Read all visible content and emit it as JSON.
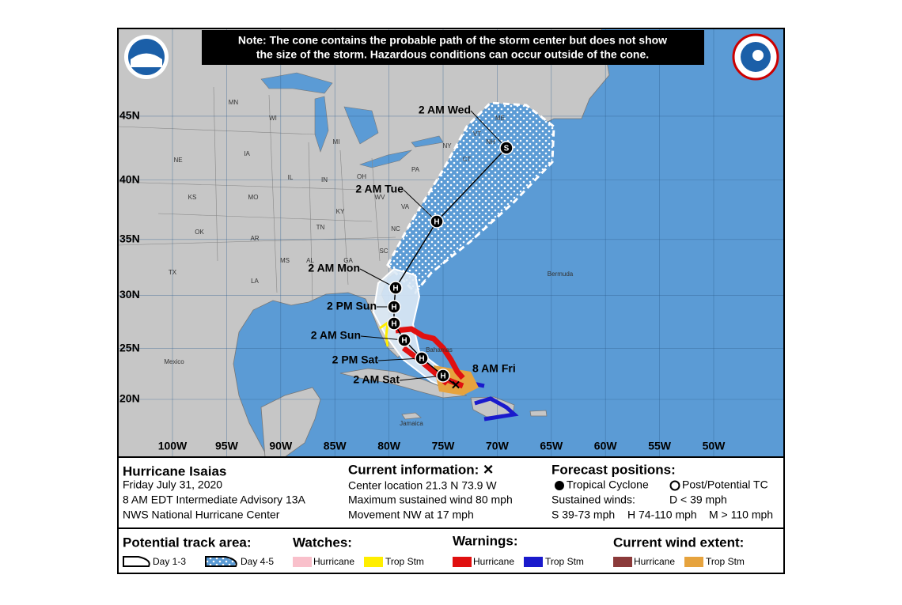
{
  "note": [
    "Note: The cone contains the probable path of the storm center but does not show",
    "the size of the storm. Hazardous conditions can occur outside of the cone."
  ],
  "map": {
    "latitudes": [
      {
        "value": 45,
        "label": "45N"
      },
      {
        "value": 40,
        "label": "40N"
      },
      {
        "value": 35,
        "label": "35N"
      },
      {
        "value": 30,
        "label": "30N"
      },
      {
        "value": 25,
        "label": "25N"
      },
      {
        "value": 20,
        "label": "20N"
      }
    ],
    "longitudes": [
      {
        "value": 100,
        "label": "100W"
      },
      {
        "value": 95,
        "label": "95W"
      },
      {
        "value": 90,
        "label": "90W"
      },
      {
        "value": 85,
        "label": "85W"
      },
      {
        "value": 80,
        "label": "80W"
      },
      {
        "value": 75,
        "label": "75W"
      },
      {
        "value": 70,
        "label": "70W"
      },
      {
        "value": 65,
        "label": "65W"
      },
      {
        "value": 60,
        "label": "60W"
      },
      {
        "value": 55,
        "label": "55W"
      },
      {
        "value": 50,
        "label": "50W"
      }
    ],
    "regions": [
      "MN",
      "WI",
      "MI",
      "IA",
      "NE",
      "KS",
      "MO",
      "IL",
      "IN",
      "OH",
      "KY",
      "TN",
      "OK",
      "AR",
      "TX",
      "LA",
      "MS",
      "AL",
      "GA",
      "SC",
      "NC",
      "VA",
      "WV",
      "PA",
      "NY",
      "VT",
      "NH",
      "ME",
      "CT",
      "Mexico",
      "Bermuda",
      "Bahamas",
      "Jamaica"
    ],
    "forecast_points": [
      {
        "time": "2 AM Sat",
        "marker": "H"
      },
      {
        "time": "2 PM Sat",
        "marker": "H"
      },
      {
        "time": "2 AM Sun",
        "marker": "H"
      },
      {
        "time": null,
        "marker": "H"
      },
      {
        "time": "2 PM Sun",
        "marker": "H"
      },
      {
        "time": "2 AM Mon",
        "marker": "H"
      },
      {
        "time": "2 AM Tue",
        "marker": "H"
      },
      {
        "time": "2 AM Wed",
        "marker": "S"
      }
    ],
    "current": {
      "time": "8 AM Fri",
      "marker": "✕"
    }
  },
  "storm": {
    "name": "Hurricane Isaias",
    "date": "Friday July 31, 2020",
    "advisory": "8 AM EDT Intermediate Advisory 13A",
    "center": "NWS National Hurricane Center"
  },
  "current_info": {
    "title": "Current information: ✕",
    "lines": [
      "Center location 21.3 N 73.9 W",
      "Maximum sustained wind 80 mph",
      "Movement NW at 17 mph"
    ]
  },
  "forecast_legend": {
    "title": "Forecast positions:",
    "tropical": "Tropical Cyclone",
    "post": "Post/Potential TC",
    "winds": "Sustained winds:",
    "d": "D < 39 mph",
    "s": "S 39-73 mph",
    "h": "H 74-110 mph",
    "m": "M > 110 mph"
  },
  "legend": {
    "track_title": "Potential track area:",
    "day13": "Day 1-3",
    "day45": "Day 4-5",
    "watches": {
      "title": "Watches:",
      "items": [
        "Hurricane",
        "Trop Stm"
      ]
    },
    "warnings": {
      "title": "Warnings:",
      "items": [
        "Hurricane",
        "Trop Stm"
      ]
    },
    "wind": {
      "title": "Current wind extent:",
      "items": [
        "Hurricane",
        "Trop Stm"
      ]
    }
  }
}
